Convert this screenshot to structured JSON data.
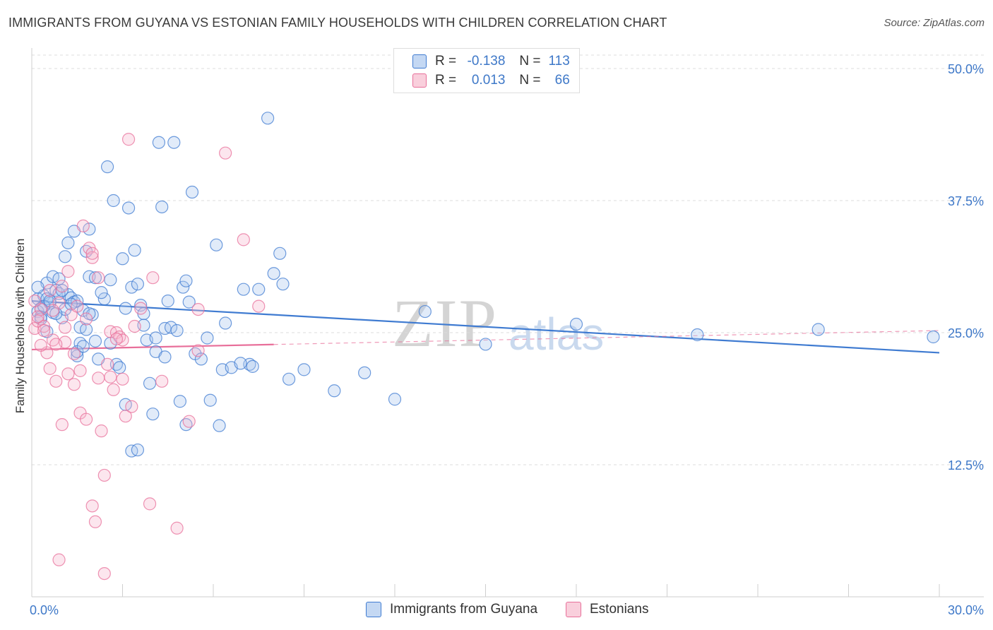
{
  "title": "IMMIGRANTS FROM GUYANA VS ESTONIAN FAMILY HOUSEHOLDS WITH CHILDREN CORRELATION CHART",
  "source": "Source: ZipAtlas.com",
  "watermark": {
    "zip": "ZIP",
    "atlas": "atlas"
  },
  "colors": {
    "blue": "#3f7bd1",
    "pink": "#e86f9a",
    "blue_fill": "#a9c6ee",
    "pink_fill": "#f6b8cd"
  },
  "legend": {
    "r_label": "R =",
    "n_label": "N =",
    "guyana": {
      "r": "-0.138",
      "n": "113"
    },
    "estonians": {
      "r": "0.013",
      "n": "66"
    }
  },
  "chart_data": {
    "type": "scatter",
    "title": "IMMIGRANTS FROM GUYANA VS ESTONIAN FAMILY HOUSEHOLDS WITH CHILDREN CORRELATION CHART",
    "xlabel": "",
    "ylabel": "Family Households with Children",
    "xlim": [
      0,
      30
    ],
    "ylim": [
      0,
      50
    ],
    "x_tick_labels": [
      "0.0%",
      "30.0%"
    ],
    "y_ticks": [
      12.5,
      25.0,
      37.5,
      50.0
    ],
    "y_tick_labels": [
      "12.5%",
      "25.0%",
      "37.5%",
      "50.0%"
    ],
    "grid": true,
    "legend_position": "top-center",
    "series": [
      {
        "name": "Immigrants from Guyana",
        "color": "#3f7bd1",
        "trend": {
          "x": [
            0,
            30
          ],
          "y": [
            28.0,
            23.1
          ],
          "style": "solid"
        },
        "points": [
          [
            0.2,
            28.2
          ],
          [
            0.3,
            27.3
          ],
          [
            0.4,
            28.5
          ],
          [
            0.5,
            29.7
          ],
          [
            0.6,
            27.8
          ],
          [
            0.7,
            30.3
          ],
          [
            0.8,
            29.0
          ],
          [
            0.9,
            30.1
          ],
          [
            1.0,
            26.4
          ],
          [
            1.1,
            27.2
          ],
          [
            1.2,
            28.6
          ],
          [
            1.3,
            28.3
          ],
          [
            1.4,
            27.9
          ],
          [
            1.5,
            28.0
          ],
          [
            1.6,
            25.5
          ],
          [
            1.7,
            27.1
          ],
          [
            1.8,
            25.3
          ],
          [
            1.9,
            30.3
          ],
          [
            2.0,
            26.7
          ],
          [
            2.1,
            30.2
          ],
          [
            0.2,
            27.0
          ],
          [
            0.3,
            26.5
          ],
          [
            0.5,
            28.2
          ],
          [
            0.7,
            26.9
          ],
          [
            0.9,
            28.7
          ],
          [
            1.1,
            32.2
          ],
          [
            1.2,
            33.5
          ],
          [
            1.4,
            34.6
          ],
          [
            1.5,
            22.8
          ],
          [
            1.6,
            24.0
          ],
          [
            1.8,
            32.7
          ],
          [
            1.9,
            34.8
          ],
          [
            2.1,
            24.2
          ],
          [
            2.2,
            22.5
          ],
          [
            2.4,
            28.2
          ],
          [
            2.5,
            40.7
          ],
          [
            2.6,
            30.0
          ],
          [
            2.7,
            37.5
          ],
          [
            2.8,
            22.0
          ],
          [
            2.9,
            21.7
          ],
          [
            3.0,
            32.0
          ],
          [
            3.1,
            27.3
          ],
          [
            3.2,
            36.8
          ],
          [
            3.3,
            29.3
          ],
          [
            3.4,
            32.8
          ],
          [
            3.5,
            29.6
          ],
          [
            3.6,
            27.6
          ],
          [
            3.7,
            26.8
          ],
          [
            3.8,
            24.3
          ],
          [
            3.9,
            20.2
          ],
          [
            4.0,
            17.3
          ],
          [
            4.1,
            24.5
          ],
          [
            4.2,
            43.0
          ],
          [
            4.3,
            36.9
          ],
          [
            4.4,
            25.4
          ],
          [
            4.5,
            28.0
          ],
          [
            4.6,
            25.5
          ],
          [
            4.7,
            43.0
          ],
          [
            4.8,
            25.2
          ],
          [
            4.9,
            18.5
          ],
          [
            5.0,
            29.3
          ],
          [
            5.1,
            29.9
          ],
          [
            5.2,
            27.9
          ],
          [
            5.3,
            38.3
          ],
          [
            5.4,
            23.0
          ],
          [
            5.6,
            22.5
          ],
          [
            5.8,
            24.5
          ],
          [
            5.9,
            18.6
          ],
          [
            6.1,
            33.3
          ],
          [
            6.3,
            21.5
          ],
          [
            6.4,
            25.9
          ],
          [
            6.6,
            21.7
          ],
          [
            7.0,
            29.1
          ],
          [
            7.2,
            22.0
          ],
          [
            7.5,
            29.1
          ],
          [
            7.8,
            45.3
          ],
          [
            8.0,
            30.6
          ],
          [
            8.2,
            32.5
          ],
          [
            8.3,
            29.6
          ],
          [
            8.5,
            20.6
          ],
          [
            9.0,
            21.5
          ],
          [
            10.0,
            19.5
          ],
          [
            11.0,
            21.2
          ],
          [
            12.0,
            18.7
          ],
          [
            13.0,
            27.0
          ],
          [
            15.0,
            23.9
          ],
          [
            18.0,
            25.8
          ],
          [
            22.0,
            24.8
          ],
          [
            26.0,
            25.3
          ],
          [
            29.8,
            24.6
          ],
          [
            0.2,
            29.3
          ],
          [
            0.4,
            27.5
          ],
          [
            0.6,
            28.0
          ],
          [
            0.8,
            26.8
          ],
          [
            1.0,
            29.0
          ],
          [
            1.3,
            27.7
          ],
          [
            1.5,
            23.2
          ],
          [
            1.7,
            23.7
          ],
          [
            1.9,
            26.8
          ],
          [
            2.3,
            28.8
          ],
          [
            2.6,
            24.0
          ],
          [
            3.1,
            18.2
          ],
          [
            3.3,
            13.8
          ],
          [
            3.5,
            13.9
          ],
          [
            3.7,
            25.7
          ],
          [
            4.1,
            23.2
          ],
          [
            4.4,
            22.7
          ],
          [
            5.1,
            16.3
          ],
          [
            6.2,
            16.2
          ],
          [
            6.9,
            22.1
          ],
          [
            7.3,
            21.8
          ],
          [
            0.3,
            26.3
          ],
          [
            0.5,
            25.1
          ]
        ]
      },
      {
        "name": "Estonians",
        "color": "#e86f9a",
        "trend": {
          "x": [
            0,
            30
          ],
          "y": [
            23.4,
            25.2
          ],
          "style": "solid-then-dashed",
          "solid_until_x": 8
        },
        "points": [
          [
            0.1,
            25.4
          ],
          [
            0.2,
            26.1
          ],
          [
            0.3,
            27.2
          ],
          [
            0.4,
            25.6
          ],
          [
            0.5,
            23.1
          ],
          [
            0.6,
            21.6
          ],
          [
            0.7,
            24.3
          ],
          [
            0.8,
            20.4
          ],
          [
            0.9,
            27.8
          ],
          [
            1.0,
            29.4
          ],
          [
            1.1,
            24.1
          ],
          [
            1.2,
            21.1
          ],
          [
            1.3,
            26.7
          ],
          [
            1.4,
            23.0
          ],
          [
            1.5,
            27.5
          ],
          [
            1.6,
            21.4
          ],
          [
            1.7,
            35.1
          ],
          [
            1.8,
            26.3
          ],
          [
            1.9,
            33.0
          ],
          [
            2.0,
            32.1
          ],
          [
            2.2,
            30.2
          ],
          [
            2.3,
            15.7
          ],
          [
            2.4,
            11.5
          ],
          [
            2.5,
            22.0
          ],
          [
            2.6,
            25.1
          ],
          [
            2.7,
            19.6
          ],
          [
            2.8,
            25.0
          ],
          [
            2.9,
            24.6
          ],
          [
            3.0,
            24.3
          ],
          [
            3.1,
            17.1
          ],
          [
            3.2,
            43.3
          ],
          [
            3.3,
            18.0
          ],
          [
            3.4,
            25.6
          ],
          [
            3.6,
            27.3
          ],
          [
            3.9,
            8.8
          ],
          [
            4.0,
            30.2
          ],
          [
            4.3,
            20.4
          ],
          [
            4.8,
            6.5
          ],
          [
            5.2,
            16.6
          ],
          [
            5.5,
            27.2
          ],
          [
            5.5,
            23.3
          ],
          [
            6.4,
            42.0
          ],
          [
            7.0,
            33.8
          ],
          [
            7.5,
            27.5
          ],
          [
            0.2,
            26.5
          ],
          [
            0.4,
            25.2
          ],
          [
            0.6,
            29.0
          ],
          [
            0.8,
            23.9
          ],
          [
            1.0,
            16.3
          ],
          [
            1.2,
            30.8
          ],
          [
            1.4,
            20.1
          ],
          [
            1.6,
            17.4
          ],
          [
            1.8,
            16.8
          ],
          [
            2.0,
            8.6
          ],
          [
            2.1,
            7.1
          ],
          [
            2.2,
            20.7
          ],
          [
            2.4,
            2.2
          ],
          [
            2.6,
            20.8
          ],
          [
            2.8,
            24.4
          ],
          [
            3.0,
            20.6
          ],
          [
            0.1,
            28.0
          ],
          [
            0.3,
            23.8
          ],
          [
            0.9,
            3.5
          ],
          [
            1.1,
            25.5
          ],
          [
            2.0,
            32.5
          ],
          [
            0.7,
            27.1
          ]
        ]
      }
    ]
  },
  "bottom_legend": {
    "guyana": "Immigrants from Guyana",
    "estonians": "Estonians"
  }
}
